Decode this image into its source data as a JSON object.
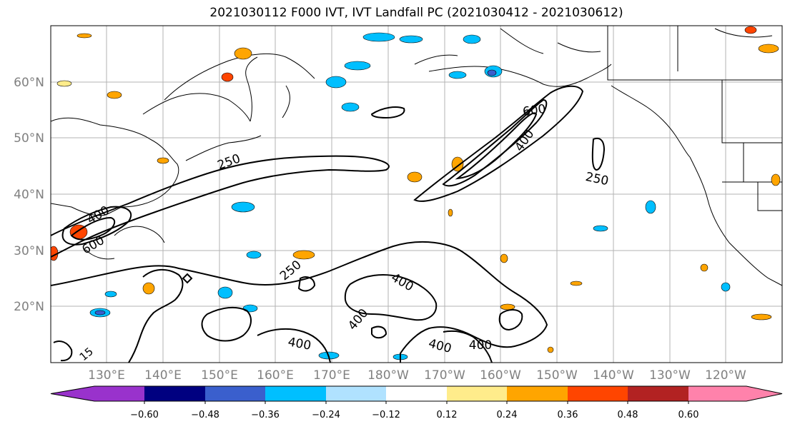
{
  "title": "2021030112 F000 IVT, IVT Landfall PC (2021030412 - 2021030612)",
  "lat_labels": [
    "60°N",
    "50°N",
    "40°N",
    "30°N",
    "20°N"
  ],
  "lon_labels": [
    "130°E",
    "140°E",
    "150°E",
    "160°E",
    "170°E",
    "180°W",
    "170°W",
    "160°W",
    "150°W",
    "140°W",
    "130°W",
    "120°W"
  ],
  "contour_labels": [
    {
      "text": "250",
      "rot": -20
    },
    {
      "text": "600",
      "rot": -8
    },
    {
      "text": "400",
      "rot": -55
    },
    {
      "text": "250",
      "rot": 12
    },
    {
      "text": "400",
      "rot": -30
    },
    {
      "text": "600",
      "rot": -30
    },
    {
      "text": "250",
      "rot": -40
    },
    {
      "text": "400",
      "rot": 30
    },
    {
      "text": "400",
      "rot": -50
    },
    {
      "text": "400",
      "rot": 10
    },
    {
      "text": "400",
      "rot": 15
    },
    {
      "text": "400",
      "rot": 0
    },
    {
      "text": "15",
      "rot": -40
    }
  ],
  "colorbar": {
    "colors": [
      "#9932CC",
      "#000080",
      "#3A5FCD",
      "#00BFFF",
      "#B0E2FF",
      "#FFFFFF",
      "#FFEC8B",
      "#FFA500",
      "#FF4500",
      "#B22222",
      "#FF82AB"
    ],
    "ticks": [
      "−0.60",
      "−0.48",
      "−0.36",
      "−0.24",
      "−0.12",
      "0.12",
      "0.24",
      "0.36",
      "0.48",
      "0.60"
    ]
  }
}
